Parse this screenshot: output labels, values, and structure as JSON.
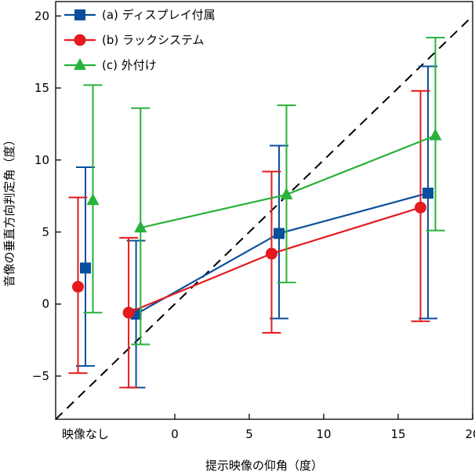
{
  "chart_data": {
    "type": "scatter",
    "title": "",
    "xlabel": "提示映像の仰角（度）",
    "ylabel": "音像の垂直方向判定角（度）",
    "xlim": [
      -8,
      20
    ],
    "ylim": [
      -8,
      21
    ],
    "x_category_label": "映像なし",
    "xticks": [
      0,
      5,
      10,
      15,
      20
    ],
    "yticks": [
      -5,
      0,
      5,
      10,
      15,
      20
    ],
    "reference_line": {
      "style": "dashed",
      "color": "#000000",
      "from": [
        -8,
        -8
      ],
      "to": [
        21,
        21
      ]
    },
    "legend_position": "top-left",
    "series": [
      {
        "name": "(a) ディスプレイ付属",
        "color": "#0a4f9c",
        "marker": "square",
        "no_image": {
          "x": -6.0,
          "y": 2.5,
          "low": -4.3,
          "high": 9.5
        },
        "points": [
          {
            "x": -2.6,
            "y": -0.7,
            "low": -5.8,
            "high": 4.4
          },
          {
            "x": 7.0,
            "y": 4.9,
            "low": -1.0,
            "high": 11.0
          },
          {
            "x": 17.0,
            "y": 7.7,
            "low": -1.0,
            "high": 16.5
          }
        ]
      },
      {
        "name": "(b) ラックシステム",
        "color": "#e41a1c",
        "marker": "circle",
        "no_image": {
          "x": -6.5,
          "y": 1.2,
          "low": -4.8,
          "high": 7.4
        },
        "points": [
          {
            "x": -3.1,
            "y": -0.6,
            "low": -5.8,
            "high": 4.6
          },
          {
            "x": 6.5,
            "y": 3.5,
            "low": -2.0,
            "high": 9.2
          },
          {
            "x": 16.5,
            "y": 6.7,
            "low": -1.2,
            "high": 14.8
          }
        ]
      },
      {
        "name": "(c) 外付け",
        "color": "#2ab13a",
        "marker": "triangle",
        "no_image": {
          "x": -5.5,
          "y": 7.2,
          "low": -0.6,
          "high": 15.2
        },
        "points": [
          {
            "x": -2.3,
            "y": 5.3,
            "low": -2.8,
            "high": 13.6
          },
          {
            "x": 7.5,
            "y": 7.6,
            "low": 1.5,
            "high": 13.8
          },
          {
            "x": 17.5,
            "y": 11.7,
            "low": 5.1,
            "high": 18.5
          }
        ]
      }
    ]
  }
}
